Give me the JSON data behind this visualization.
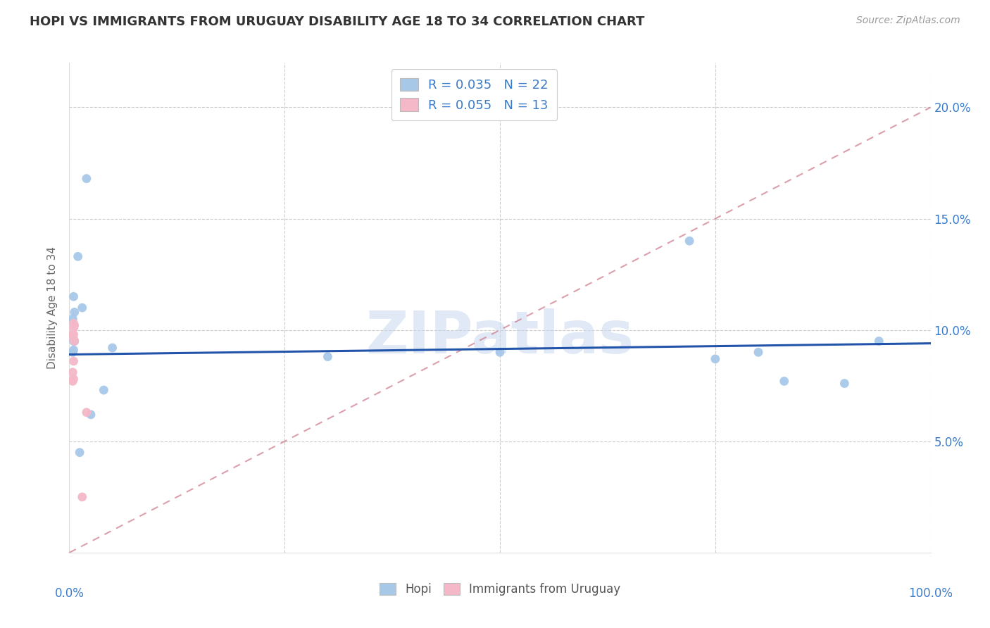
{
  "title": "HOPI VS IMMIGRANTS FROM URUGUAY DISABILITY AGE 18 TO 34 CORRELATION CHART",
  "source": "Source: ZipAtlas.com",
  "ylabel": "Disability Age 18 to 34",
  "xlim": [
    0,
    100
  ],
  "ylim": [
    0,
    22
  ],
  "ytick_values": [
    5,
    10,
    15,
    20
  ],
  "ytick_labels": [
    "5.0%",
    "10.0%",
    "15.0%",
    "20.0%"
  ],
  "legend_hopi_r": "R = 0.035",
  "legend_hopi_n": "N = 22",
  "legend_uru_r": "R = 0.055",
  "legend_uru_n": "N = 13",
  "hopi_color": "#a8c8e8",
  "hopi_line_color": "#2255aa",
  "uru_color": "#f4b8c8",
  "uru_line_color": "#cc7788",
  "watermark_text": "ZIPatlas",
  "hopi_scatter_x": [
    1.0,
    2.0,
    1.5,
    0.5,
    0.6,
    0.4,
    0.5,
    0.6,
    0.5,
    0.4,
    5.0,
    30.0,
    50.0,
    2.5,
    4.0,
    72.0,
    75.0,
    80.0,
    83.0,
    90.0,
    94.0,
    1.2
  ],
  "hopi_scatter_y": [
    13.3,
    16.8,
    11.0,
    11.5,
    10.8,
    10.5,
    9.5,
    9.5,
    9.1,
    9.0,
    9.2,
    8.8,
    9.0,
    6.2,
    7.3,
    14.0,
    8.7,
    9.0,
    7.7,
    7.6,
    9.5,
    4.5
  ],
  "uru_scatter_x": [
    0.4,
    0.5,
    0.5,
    0.5,
    0.6,
    0.5,
    0.6,
    0.5,
    0.4,
    0.5,
    0.4,
    2.0,
    1.5
  ],
  "uru_scatter_y": [
    9.8,
    10.3,
    10.1,
    9.8,
    10.2,
    9.6,
    9.5,
    8.6,
    7.7,
    7.8,
    8.1,
    6.3,
    2.5
  ],
  "hopi_line_x": [
    0,
    100
  ],
  "hopi_line_y": [
    8.9,
    9.4
  ],
  "uru_line_x": [
    0,
    100
  ],
  "uru_line_y": [
    0.0,
    20.0
  ]
}
